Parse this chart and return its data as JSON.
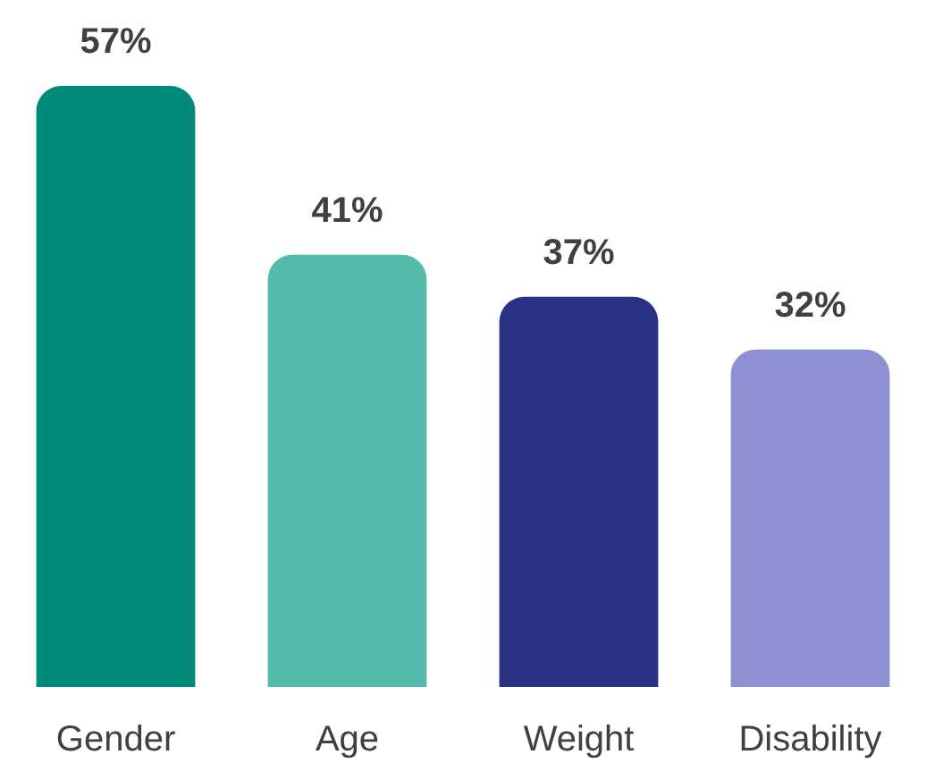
{
  "chart_data": {
    "type": "bar",
    "categories": [
      "Gender",
      "Age",
      "Weight",
      "Disability"
    ],
    "values": [
      57,
      41,
      37,
      32
    ],
    "colors": [
      "#008a77",
      "#52bbaa",
      "#283184",
      "#8f8fd4"
    ],
    "value_labels": [
      "57%",
      "41%",
      "37%",
      "32%"
    ],
    "ylim": [
      0,
      57
    ],
    "tick_labels": "x",
    "grid": false,
    "legend": false
  }
}
